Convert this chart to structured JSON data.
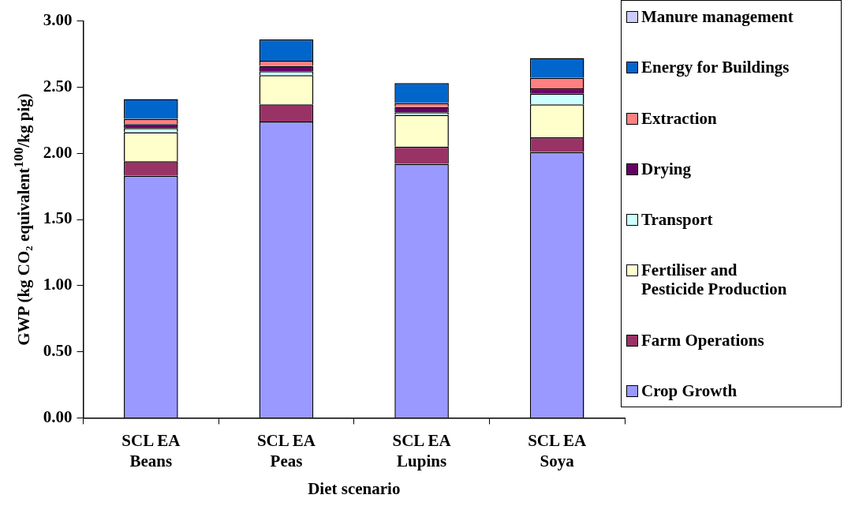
{
  "chart_data": {
    "type": "bar",
    "stacked": true,
    "xlabel": "Diet scenario",
    "ylabel": "GWP (kg CO₂ equivalent$^{100}$/kg pig)",
    "categories": [
      "SCL EA\nBeans",
      "SCL EA\nPeas",
      "SCL EA\nLupins",
      "SCL EA\nSoya"
    ],
    "ylim": [
      0,
      3
    ],
    "yticks": [
      {
        "value": 0,
        "label": "0.00"
      },
      {
        "value": 0.5,
        "label": "0.50"
      },
      {
        "value": 1,
        "label": "1.00"
      },
      {
        "value": 1.5,
        "label": "1.50"
      },
      {
        "value": 2,
        "label": "2.00"
      },
      {
        "value": 2.5,
        "label": "2.50"
      },
      {
        "value": 3,
        "label": "3.00"
      }
    ],
    "grid": false,
    "legend": "right",
    "series": [
      {
        "name": "Crop Growth",
        "color": "#9999ff",
        "values": [
          1.83,
          2.24,
          1.92,
          2.01
        ]
      },
      {
        "name": "Farm Operations",
        "color": "#993366",
        "values": [
          0.11,
          0.13,
          0.13,
          0.11
        ]
      },
      {
        "name": "Fertiliser and\nPesticide Production",
        "color": "#ffffcc",
        "values": [
          0.22,
          0.22,
          0.24,
          0.25
        ]
      },
      {
        "name": "Transport",
        "color": "#ccffff",
        "values": [
          0.03,
          0.03,
          0.02,
          0.08
        ]
      },
      {
        "name": "Drying",
        "color": "#660066",
        "values": [
          0.03,
          0.04,
          0.04,
          0.04
        ]
      },
      {
        "name": "Extraction",
        "color": "#ff8080",
        "values": [
          0.04,
          0.04,
          0.03,
          0.08
        ]
      },
      {
        "name": "Energy for Buildings",
        "color": "#0066cc",
        "values": [
          0.15,
          0.16,
          0.15,
          0.15
        ]
      },
      {
        "name": "Manure management",
        "color": "#ccccff",
        "values": [
          0,
          0,
          0,
          0
        ]
      }
    ]
  }
}
